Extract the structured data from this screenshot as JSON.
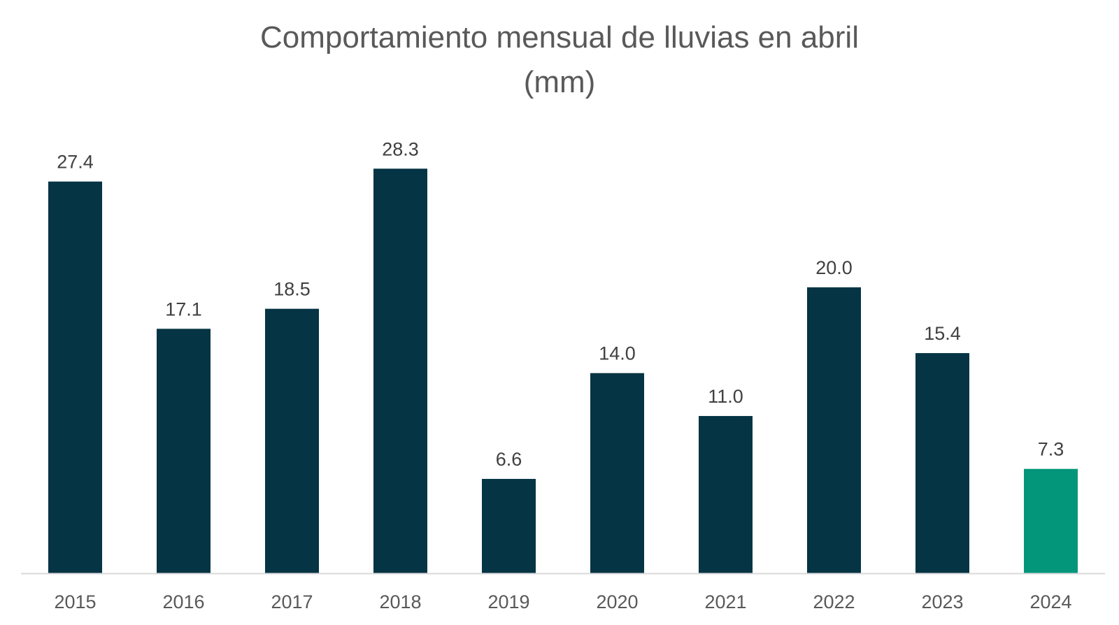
{
  "chart_data": {
    "type": "bar",
    "title": "Comportamiento mensual de lluvias en abril",
    "subtitle": "(mm)",
    "categories": [
      "2015",
      "2016",
      "2017",
      "2018",
      "2019",
      "2020",
      "2021",
      "2022",
      "2023",
      "2024"
    ],
    "values": [
      27.4,
      17.1,
      18.5,
      28.3,
      6.6,
      14.0,
      11.0,
      20.0,
      15.4,
      7.3
    ],
    "value_labels": [
      "27.4",
      "17.1",
      "18.5",
      "28.3",
      "6.6",
      "14.0",
      "11.0",
      "20.0",
      "15.4",
      "7.3"
    ],
    "xlabel": "",
    "ylabel": "",
    "ylim": [
      0,
      30
    ],
    "grid": false,
    "legend": "none",
    "colors": {
      "bar": "#053444",
      "highlight": "#03967A",
      "axis": "#D9D9D9"
    },
    "highlight_category": "2024"
  }
}
